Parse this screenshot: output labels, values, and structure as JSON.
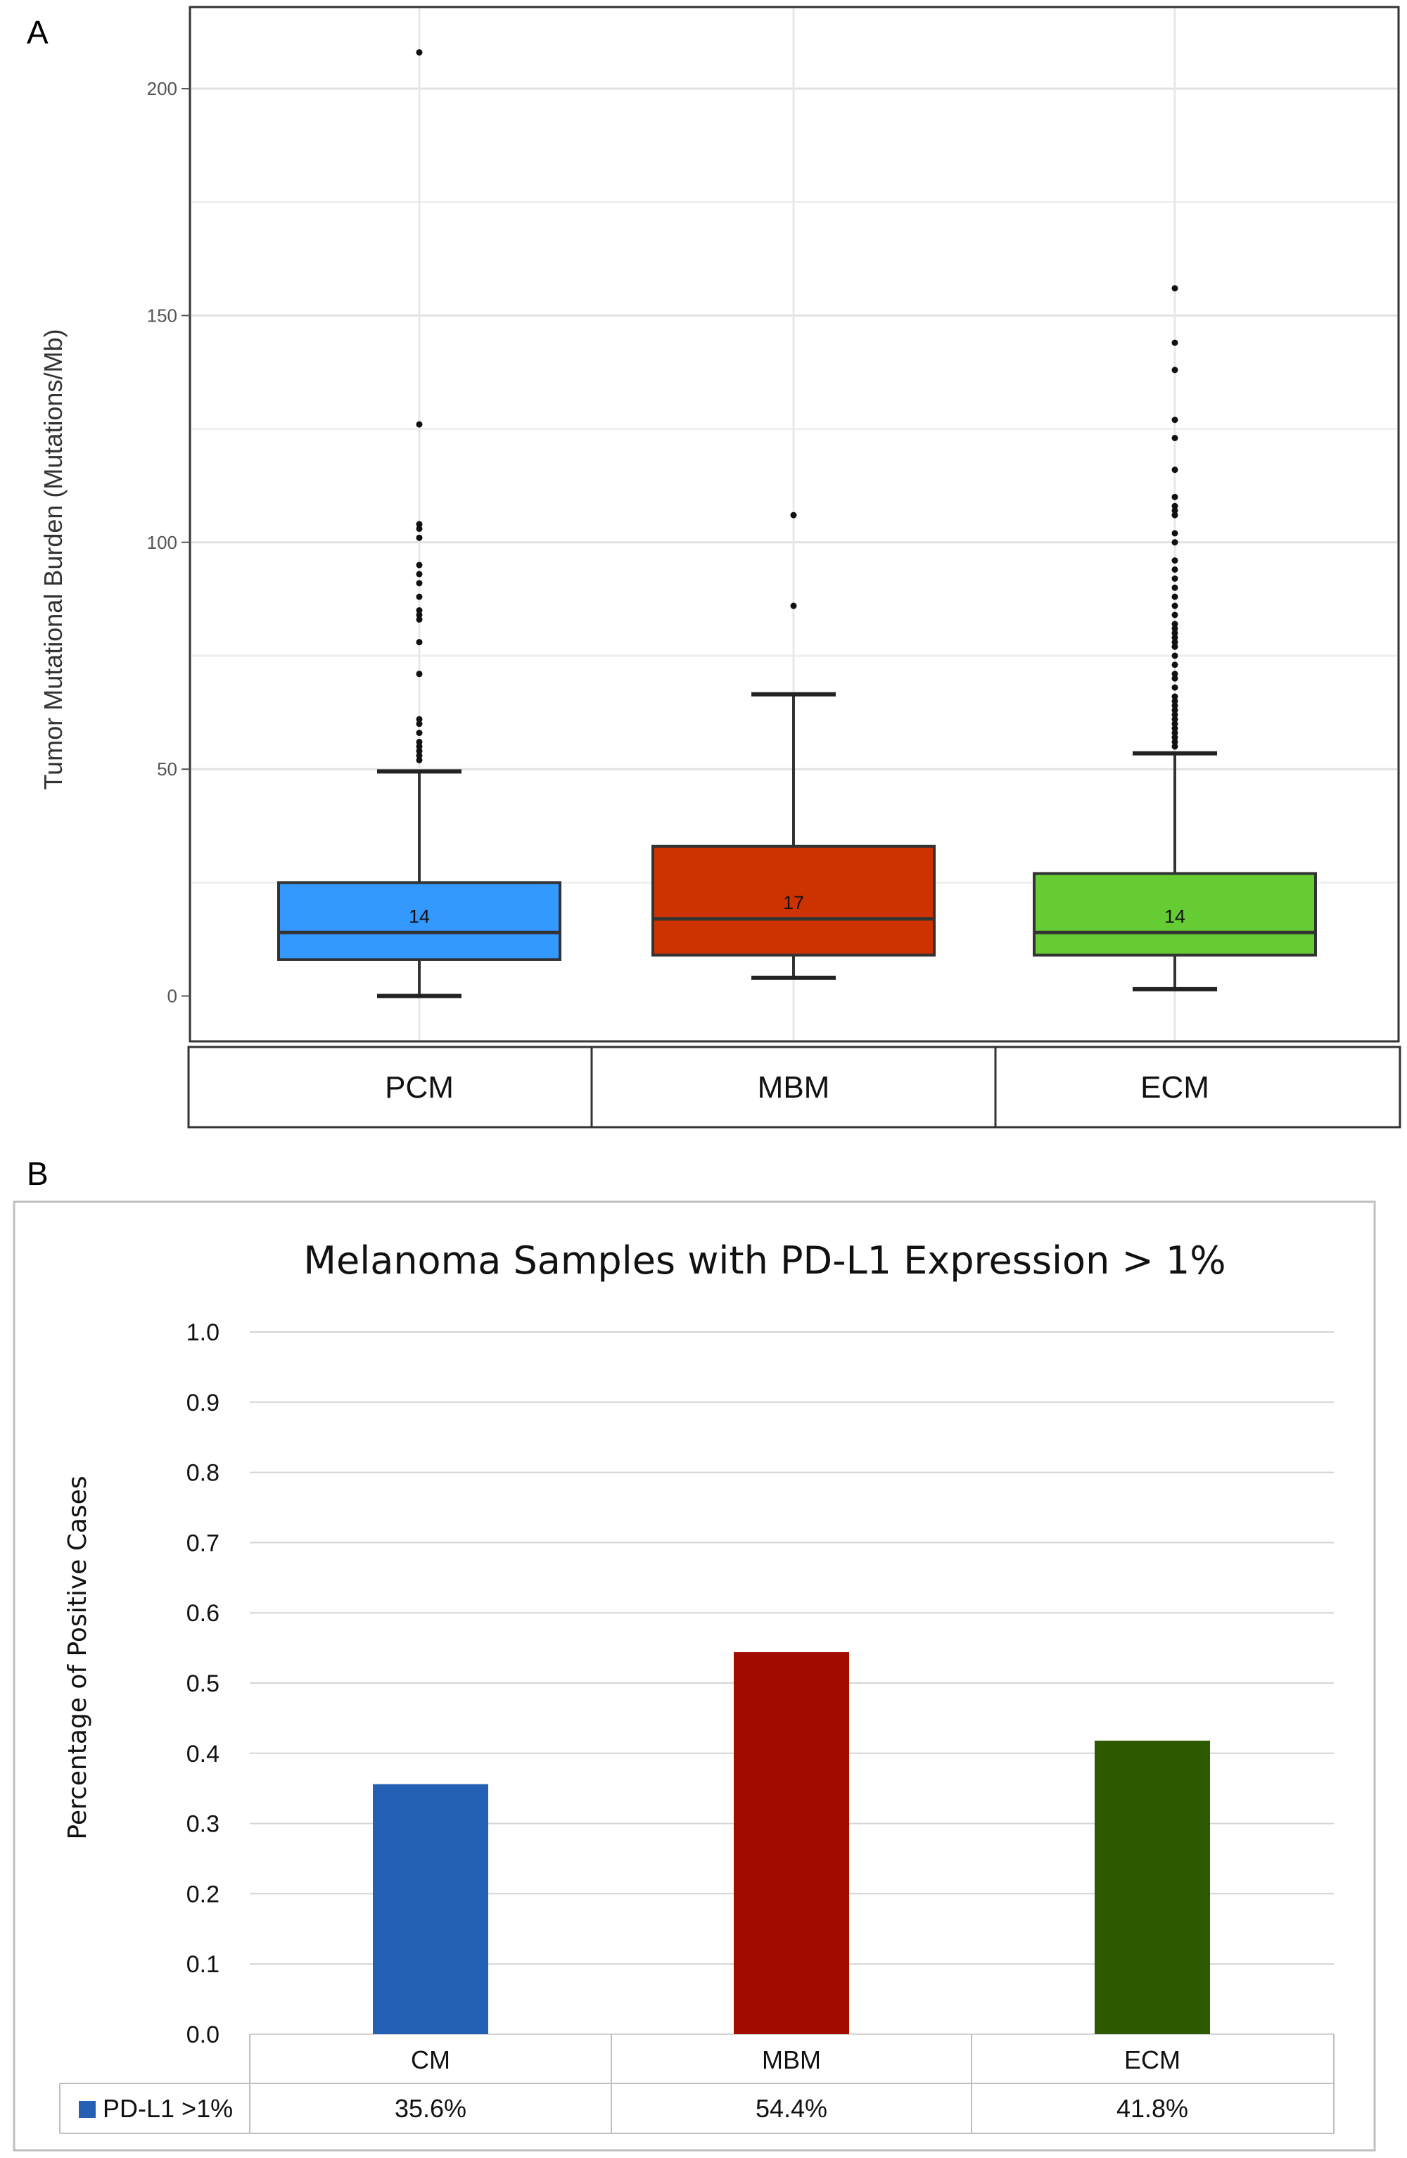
{
  "panels": {
    "a_letter": "A",
    "b_letter": "B"
  },
  "chart_data": [
    {
      "type": "box",
      "ylabel": "Tumor Mutational Burden (Mutations/Mb)",
      "ylim": [
        -10,
        218
      ],
      "yticks": [
        0,
        50,
        100,
        150,
        200
      ],
      "grid": true,
      "categories": [
        "PCM",
        "MBM",
        "ECM"
      ],
      "boxes": [
        {
          "name": "PCM",
          "color": "#3399ff",
          "whisker_low": 0,
          "q1": 8,
          "median": 14,
          "q3": 25,
          "whisker_high": 49.5,
          "median_label": "14",
          "outliers": [
            52,
            53,
            54,
            55,
            56,
            58,
            60,
            61,
            71,
            78,
            83,
            84,
            85,
            88,
            91,
            93,
            95,
            101,
            103,
            104,
            126,
            208
          ]
        },
        {
          "name": "MBM",
          "color": "#cc3300",
          "whisker_low": 4,
          "q1": 9,
          "median": 17,
          "q3": 33,
          "whisker_high": 66.5,
          "median_label": "17",
          "outliers": [
            86,
            106
          ]
        },
        {
          "name": "ECM",
          "color": "#66cc33",
          "whisker_low": 1.5,
          "q1": 9,
          "median": 14,
          "q3": 27,
          "whisker_high": 53.5,
          "median_label": "14",
          "outliers": [
            55,
            56,
            57,
            58,
            59,
            60,
            61,
            62,
            63,
            64,
            65,
            66,
            68,
            70,
            71,
            73,
            75,
            77,
            78,
            79,
            80,
            81,
            82,
            84,
            86,
            88,
            90,
            92,
            94,
            96,
            100,
            102,
            106,
            107,
            108,
            110,
            116,
            123,
            127,
            138,
            144,
            156
          ]
        }
      ]
    },
    {
      "type": "bar",
      "title": "Melanoma Samples with PD-L1 Expression > 1%",
      "ylabel": "Percentage of Positive Cases",
      "ylim": [
        0,
        1.0
      ],
      "yticks": [
        "0.0",
        "0.1",
        "0.2",
        "0.3",
        "0.4",
        "0.5",
        "0.6",
        "0.7",
        "0.8",
        "0.9",
        "1.0"
      ],
      "grid": true,
      "categories": [
        "CM",
        "MBM",
        "ECM"
      ],
      "values": [
        0.356,
        0.544,
        0.418
      ],
      "bar_colors": [
        "#2461b4",
        "#a00c00",
        "#2d5a00"
      ],
      "legend_color": "#2461b4",
      "series_name": "PD-L1 >1%",
      "table_values": [
        "35.6%",
        "54.4%",
        "41.8%"
      ]
    }
  ]
}
